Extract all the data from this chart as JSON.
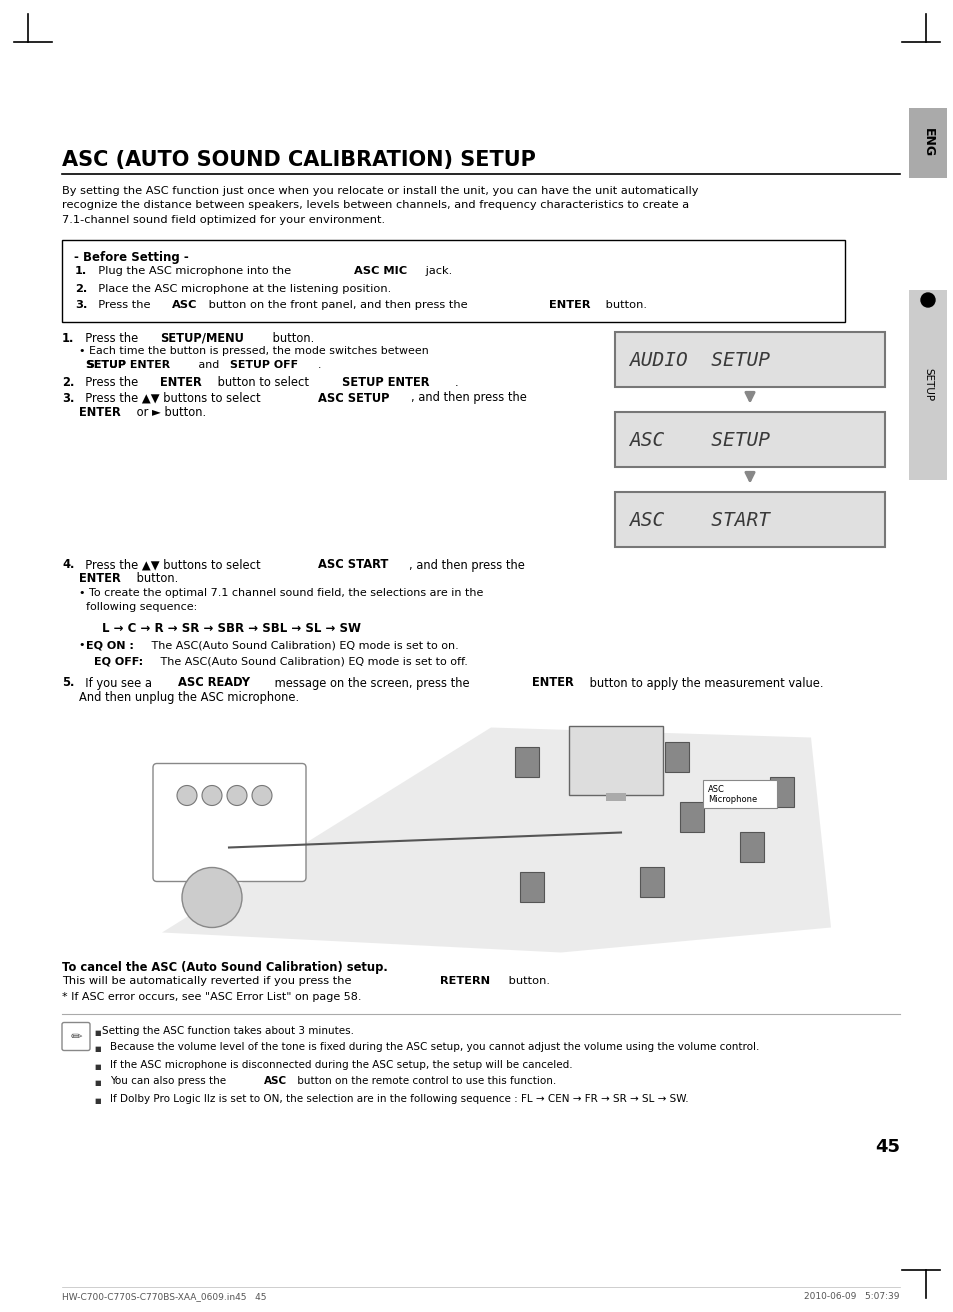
{
  "page_bg": "#ffffff",
  "title": "ASC (AUTO SOUND CALIBRATION) SETUP",
  "intro_text": [
    "By setting the ASC function just once when you relocate or install the unit, you can have the unit automatically",
    "recognize the distance between speakers, levels between channels, and frequency characteristics to create a",
    "7.1-channel sound field optimized for your environment."
  ],
  "before_setting_title": "- Before Setting -",
  "lcd_screens": [
    "AUDIO  SETUP",
    "ASC    SETUP",
    "ASC    START"
  ],
  "sequence_text": "L → C → R → SR → SBR → SBL → SL → SW",
  "cancel_title": "To cancel the ASC (Auto Sound Calibration) setup.",
  "cancel_text1": "This will be automatically reverted if you press the ",
  "cancel_bold": "RETERN",
  "cancel_text2": " button.",
  "error_note": "* If ASC error occurs, see \"ASC Error List\" on page 58.",
  "notes": [
    "Setting the ASC function takes about 3 minutes.",
    "Because the volume level of the tone is fixed during the ASC setup, you cannot adjust the volume using the volume control.",
    "If the ASC microphone is disconnected during the ASC setup, the setup will be canceled.",
    "You can also press the ASC button on the remote control to use this function.",
    "If Dolby Pro Logic IIz is set to ON, the selection are in the following sequence : FL → CEN → FR → SR → SL → SW."
  ],
  "notes_bold_word": [
    "",
    "",
    "",
    "ASC",
    ""
  ],
  "page_num": "45",
  "footer_left": "HW-C700-C770S-C770BS-XAA_0609.in45   45",
  "footer_right": "2010-06-09   5:07:39",
  "eng_bg": "#aaaaaa",
  "setup_bg": "#cccccc"
}
